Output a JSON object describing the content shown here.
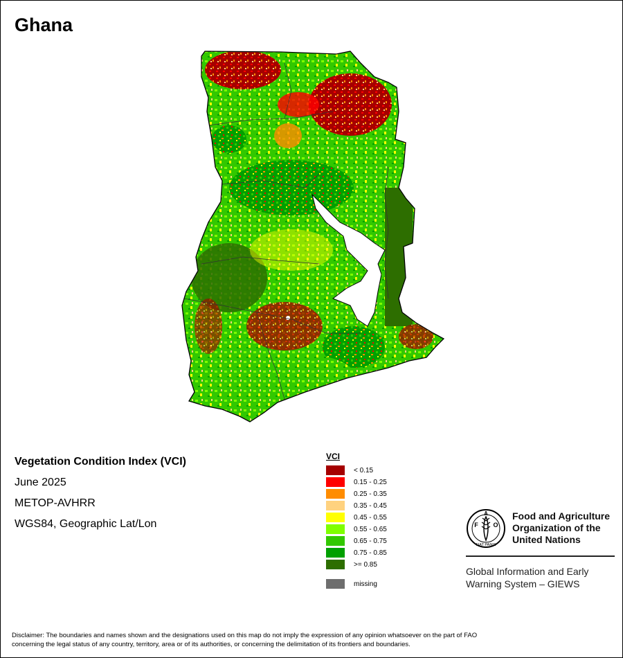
{
  "map_title": "Ghana",
  "info": {
    "index_name": "Vegetation Condition Index (VCI)",
    "date": "June 2025",
    "sensor": "METOP-AVHRR",
    "projection": "WGS84, Geographic Lat/Lon"
  },
  "legend": {
    "title": "VCI",
    "items": [
      {
        "label": "< 0.15",
        "color": "#a50000"
      },
      {
        "label": "0.15 - 0.25",
        "color": "#ff0000"
      },
      {
        "label": "0.25 - 0.35",
        "color": "#ff8c00"
      },
      {
        "label": "0.35 - 0.45",
        "color": "#ffd27f"
      },
      {
        "label": "0.45 - 0.55",
        "color": "#ffff00"
      },
      {
        "label": "0.55 - 0.65",
        "color": "#7fff00"
      },
      {
        "label": "0.65 - 0.75",
        "color": "#32c800"
      },
      {
        "label": "0.75 - 0.85",
        "color": "#00a000"
      },
      {
        "label": ">= 0.85",
        "color": "#2d6e00"
      }
    ],
    "missing": {
      "label": "missing",
      "color": "#6e6e6e"
    }
  },
  "fao": {
    "name_line1": "Food and Agriculture",
    "name_line2": "Organization of the",
    "name_line3": "United Nations",
    "giews_line1": "Global Information and Early",
    "giews_line2": "Warning System – GIEWS",
    "logo_text": "FAO",
    "logo_motto": "FIAT PANIS"
  },
  "disclaimer_line1": "Disclaimer: The boundaries and names shown and the designations used on this map do not imply the expression of any opinion whatsoever on the part of FAO",
  "disclaimer_line2": "concerning the legal status of any country, territory, area or of its authorities, or concerning the delimitation of its frontiers and boundaries."
}
